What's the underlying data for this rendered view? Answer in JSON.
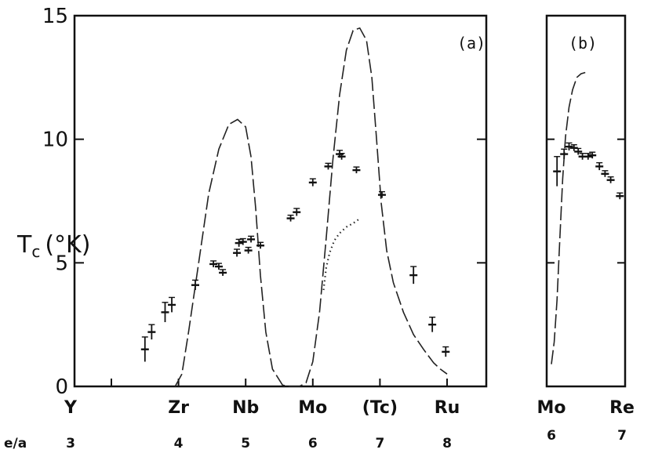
{
  "chart_data": [
    {
      "type": "scatter",
      "panel_label": "(a)",
      "y_axis_label": "T",
      "y_axis_label_sub": "c",
      "y_axis_label_unit": "(°K)",
      "ylim": [
        0,
        15
      ],
      "yticks": [
        "0",
        "5",
        "10",
        "15"
      ],
      "xlim": [
        3,
        8
      ],
      "x_element_labels": [
        "Y",
        "Zr",
        "Nb",
        "Mo",
        "(Tc)",
        "Ru"
      ],
      "x_element_positions": [
        3,
        4,
        5,
        6,
        7,
        8
      ],
      "ea_row_label": "e/a",
      "ea_values": [
        "3",
        "4",
        "5",
        "6",
        "7",
        "8"
      ],
      "measured": [
        {
          "x": 3.5,
          "y": 1.5,
          "err": 0.5
        },
        {
          "x": 3.6,
          "y": 2.2,
          "err": 0.3
        },
        {
          "x": 3.8,
          "y": 3.0,
          "err": 0.4
        },
        {
          "x": 3.9,
          "y": 3.3,
          "err": 0.3
        },
        {
          "x": 4.25,
          "y": 4.1,
          "err": 0.2
        },
        {
          "x": 4.52,
          "y": 4.95,
          "err": 0.1
        },
        {
          "x": 4.6,
          "y": 4.85,
          "err": 0.1
        },
        {
          "x": 4.66,
          "y": 4.6,
          "err": 0.1
        },
        {
          "x": 4.87,
          "y": 5.4,
          "err": 0.15
        },
        {
          "x": 4.9,
          "y": 5.8,
          "err": 0.15
        },
        {
          "x": 4.96,
          "y": 5.85,
          "err": 0.1
        },
        {
          "x": 5.04,
          "y": 5.5,
          "err": 0.1
        },
        {
          "x": 5.08,
          "y": 5.95,
          "err": 0.1
        },
        {
          "x": 5.22,
          "y": 5.7,
          "err": 0.1
        },
        {
          "x": 5.67,
          "y": 6.8,
          "err": 0.1
        },
        {
          "x": 5.76,
          "y": 7.05,
          "err": 0.15
        },
        {
          "x": 6.0,
          "y": 8.25,
          "err": 0.15
        },
        {
          "x": 6.23,
          "y": 8.9,
          "err": 0.1
        },
        {
          "x": 6.4,
          "y": 9.4,
          "err": 0.15
        },
        {
          "x": 6.43,
          "y": 9.3,
          "err": 0.1
        },
        {
          "x": 6.65,
          "y": 8.75,
          "err": 0.1
        },
        {
          "x": 7.03,
          "y": 7.75,
          "err": 0.1
        },
        {
          "x": 7.5,
          "y": 4.5,
          "err": 0.35
        },
        {
          "x": 7.78,
          "y": 2.5,
          "err": 0.3
        },
        {
          "x": 7.98,
          "y": 1.4,
          "err": 0.2
        }
      ],
      "dashed_curve": [
        [
          3.95,
          0.0
        ],
        [
          4.05,
          0.5
        ],
        [
          4.15,
          2.2
        ],
        [
          4.3,
          5.0
        ],
        [
          4.45,
          7.8
        ],
        [
          4.6,
          9.6
        ],
        [
          4.75,
          10.6
        ],
        [
          4.88,
          10.8
        ],
        [
          5.0,
          10.5
        ],
        [
          5.08,
          9.3
        ],
        [
          5.15,
          7.2
        ],
        [
          5.22,
          4.5
        ],
        [
          5.3,
          2.2
        ],
        [
          5.4,
          0.7
        ],
        [
          5.55,
          0.05
        ],
        [
          5.65,
          0.0
        ],
        [
          5.8,
          0.0
        ],
        [
          5.9,
          0.15
        ],
        [
          6.0,
          1.0
        ],
        [
          6.1,
          3.0
        ],
        [
          6.2,
          6.0
        ],
        [
          6.3,
          9.2
        ],
        [
          6.4,
          11.8
        ],
        [
          6.5,
          13.6
        ],
        [
          6.6,
          14.4
        ],
        [
          6.7,
          14.5
        ],
        [
          6.8,
          14.0
        ],
        [
          6.88,
          12.5
        ],
        [
          6.95,
          10.0
        ],
        [
          7.02,
          7.4
        ],
        [
          7.1,
          5.5
        ],
        [
          7.2,
          4.2
        ],
        [
          7.35,
          3.0
        ],
        [
          7.5,
          2.1
        ],
        [
          7.65,
          1.5
        ],
        [
          7.8,
          0.95
        ],
        [
          7.9,
          0.7
        ],
        [
          8.0,
          0.5
        ]
      ],
      "dotted_curve": [
        [
          6.16,
          3.9
        ],
        [
          6.2,
          4.8
        ],
        [
          6.25,
          5.4
        ],
        [
          6.32,
          5.9
        ],
        [
          6.4,
          6.2
        ],
        [
          6.5,
          6.45
        ],
        [
          6.6,
          6.6
        ],
        [
          6.68,
          6.75
        ]
      ]
    },
    {
      "type": "scatter",
      "panel_label": "(b)",
      "ylim": [
        0,
        15
      ],
      "xlim": [
        6,
        7
      ],
      "x_element_labels": [
        "Mo",
        "Re"
      ],
      "x_element_positions": [
        6,
        7
      ],
      "ea_values": [
        "6",
        "7"
      ],
      "measured": [
        {
          "x": 6.08,
          "y": 8.7,
          "err": 0.6
        },
        {
          "x": 6.18,
          "y": 9.4,
          "err": 0.2
        },
        {
          "x": 6.25,
          "y": 9.7,
          "err": 0.15
        },
        {
          "x": 6.32,
          "y": 9.65,
          "err": 0.1
        },
        {
          "x": 6.38,
          "y": 9.5,
          "err": 0.1
        },
        {
          "x": 6.44,
          "y": 9.3,
          "err": 0.1
        },
        {
          "x": 6.52,
          "y": 9.3,
          "err": 0.1
        },
        {
          "x": 6.58,
          "y": 9.35,
          "err": 0.1
        },
        {
          "x": 6.68,
          "y": 8.9,
          "err": 0.15
        },
        {
          "x": 6.76,
          "y": 8.6,
          "err": 0.1
        },
        {
          "x": 6.84,
          "y": 8.35,
          "err": 0.1
        },
        {
          "x": 6.97,
          "y": 7.7,
          "err": 0.1
        }
      ],
      "dashed_curve": [
        [
          6.0,
          0.9
        ],
        [
          6.04,
          1.8
        ],
        [
          6.08,
          3.5
        ],
        [
          6.12,
          6.0
        ],
        [
          6.16,
          8.4
        ],
        [
          6.2,
          10.1
        ],
        [
          6.25,
          11.3
        ],
        [
          6.3,
          12.0
        ],
        [
          6.36,
          12.5
        ],
        [
          6.42,
          12.65
        ],
        [
          6.48,
          12.7
        ]
      ]
    }
  ]
}
